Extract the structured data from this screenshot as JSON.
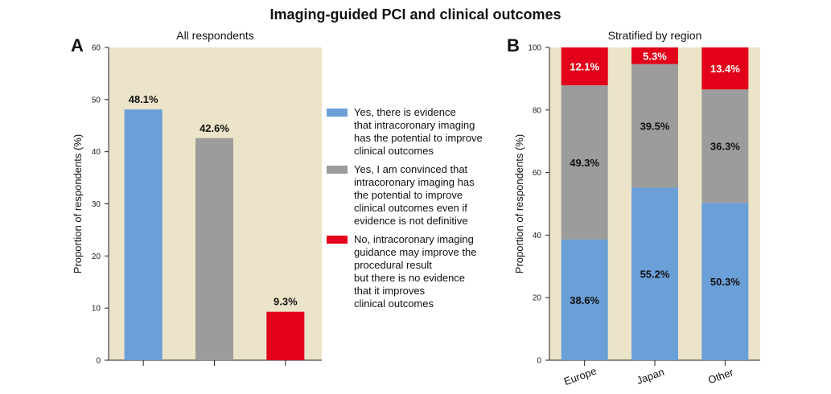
{
  "title": "Imaging-guided PCI and clinical outcomes",
  "colors": {
    "blue": "#6a9fd8",
    "gray": "#9c9c9c",
    "red": "#e2001a",
    "panel_bg": "#ebe4c8"
  },
  "panel_a": {
    "letter": "A",
    "subtitle": "All respondents",
    "ylabel": "Proportion of respondents (%)"
  },
  "panel_b": {
    "letter": "B",
    "subtitle": "Stratified by region",
    "ylabel": "Proportion of respondents (%)"
  },
  "legend": [
    {
      "label": "Yes, there is evidence\nthat intracoronary imaging\nhas the potential to improve\nclinical outcomes",
      "color_key": "blue"
    },
    {
      "label": "Yes, I am convinced that\nintracoronary imaging has\nthe potential to improve\nclinical outcomes even if\nevidence is not definitive",
      "color_key": "gray"
    },
    {
      "label": "No, intracoronary imaging\nguidance may improve the\nprocedural result\nbut there is no evidence\nthat it improves\nclinical outcomes",
      "color_key": "red"
    }
  ],
  "chart_data": [
    {
      "type": "bar",
      "values": [
        48.1,
        42.6,
        9.3
      ],
      "data_labels": [
        "48.1%",
        "42.6%",
        "9.3%"
      ],
      "color_keys": [
        "blue",
        "gray",
        "red"
      ],
      "ylim": [
        0,
        60
      ],
      "yticks": [
        "0",
        "10",
        "20",
        "30",
        "40",
        "50",
        "60"
      ]
    },
    {
      "type": "bar",
      "stacked": true,
      "categories": [
        "Europe",
        "Japan",
        "Other"
      ],
      "series": [
        {
          "values": [
            38.6,
            55.2,
            50.3
          ],
          "labels": [
            "38.6%",
            "55.2%",
            "50.3%"
          ],
          "color_key": "blue"
        },
        {
          "values": [
            49.3,
            39.5,
            36.3
          ],
          "labels": [
            "49.3%",
            "39.5%",
            "36.3%"
          ],
          "color_key": "gray"
        },
        {
          "values": [
            12.1,
            5.3,
            13.4
          ],
          "labels": [
            "12.1%",
            "5.3%",
            "13.4%"
          ],
          "color_key": "red"
        }
      ],
      "ylim": [
        0,
        100
      ],
      "yticks": [
        "0",
        "20",
        "40",
        "60",
        "80",
        "100"
      ]
    }
  ]
}
